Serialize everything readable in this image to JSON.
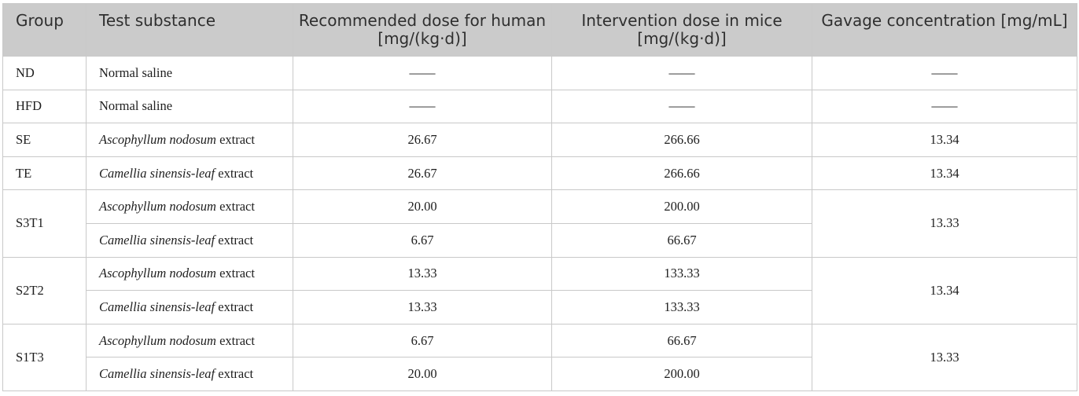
{
  "headers": {
    "group": "Group",
    "substance": "Test substance",
    "human_dose": "Recommended dose for human [mg/(kg·d)]",
    "mice_dose": "Intervention dose in mice [mg/(kg·d)]",
    "gavage": "Gavage concentration [mg/mL]"
  },
  "substances": {
    "saline": "Normal saline",
    "asco_italic": "Ascophyllum nodosum",
    "camellia_italic": "Camellia sinensis-leaf",
    "extract_suffix": " extract"
  },
  "dash": "——",
  "rows": {
    "nd": {
      "group": "ND"
    },
    "hfd": {
      "group": "HFD"
    },
    "se": {
      "group": "SE",
      "human": "26.67",
      "mice": "266.66",
      "gavage": "13.34"
    },
    "te": {
      "group": "TE",
      "human": "26.67",
      "mice": "266.66",
      "gavage": "13.34"
    },
    "s3t1": {
      "group": "S3T1",
      "a_human": "20.00",
      "a_mice": "200.00",
      "c_human": "6.67",
      "c_mice": "66.67",
      "gavage": "13.33"
    },
    "s2t2": {
      "group": "S2T2",
      "a_human": "13.33",
      "a_mice": "133.33",
      "c_human": "13.33",
      "c_mice": "133.33",
      "gavage": "13.34"
    },
    "s1t3": {
      "group": "S1T3",
      "a_human": "6.67",
      "a_mice": "66.67",
      "c_human": "20.00",
      "c_mice": "200.00",
      "gavage": "13.33"
    }
  }
}
